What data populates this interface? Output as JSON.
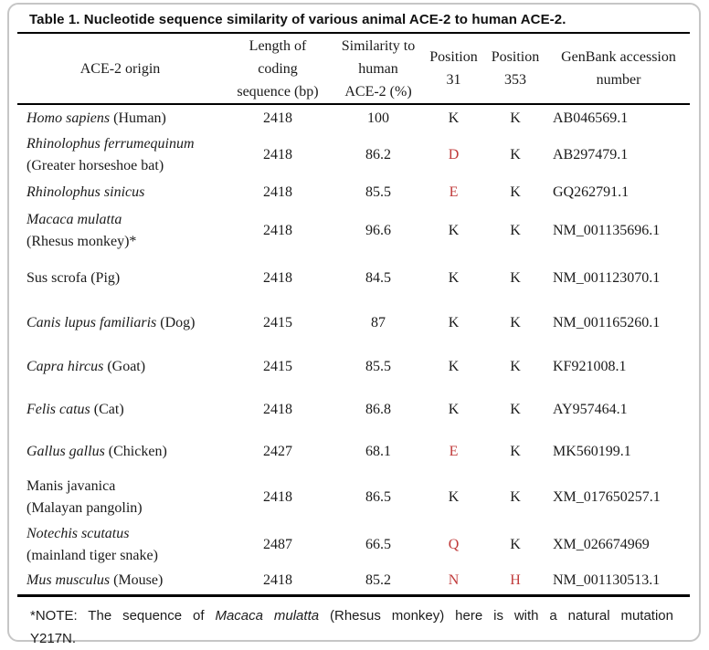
{
  "title": "Table 1. Nucleotide sequence similarity of various animal ACE-2 to human ACE-2.",
  "colors": {
    "highlight_red": "#c03a3a",
    "rule_black": "#000000",
    "card_border_gray": "#c6c6c6"
  },
  "table": {
    "columns": [
      {
        "id": "origin",
        "lines": [
          "ACE-2 origin"
        ]
      },
      {
        "id": "length",
        "lines": [
          "Length of",
          "coding",
          "sequence (bp)"
        ]
      },
      {
        "id": "similarity",
        "lines": [
          "Similarity to",
          "human",
          "ACE-2 (%)"
        ]
      },
      {
        "id": "pos31",
        "lines": [
          "Position",
          "31"
        ]
      },
      {
        "id": "pos353",
        "lines": [
          "Position",
          "353"
        ]
      },
      {
        "id": "accession",
        "lines": [
          "GenBank accession",
          "number"
        ]
      }
    ],
    "rows": [
      {
        "origin": [
          [
            {
              "text": "Homo sapiens",
              "italic": true
            },
            {
              "text": " (Human)",
              "italic": false
            }
          ]
        ],
        "length": "2418",
        "similarity": "100",
        "pos31": {
          "text": "K",
          "red": false
        },
        "pos353": {
          "text": "K",
          "red": false
        },
        "accession": "AB046569.1"
      },
      {
        "origin": [
          [
            {
              "text": "Rhinolophus ferrumequinum",
              "italic": true
            }
          ],
          [
            {
              "text": "(Greater horseshoe bat)",
              "italic": false
            }
          ]
        ],
        "length": "2418",
        "similarity": "86.2",
        "pos31": {
          "text": "D",
          "red": true
        },
        "pos353": {
          "text": "K",
          "red": false
        },
        "accession": "AB297479.1"
      },
      {
        "origin": [
          [
            {
              "text": "Rhinolophus sinicus",
              "italic": true
            }
          ]
        ],
        "length": "2418",
        "similarity": "85.5",
        "pos31": {
          "text": "E",
          "red": true
        },
        "pos353": {
          "text": "K",
          "red": false
        },
        "accession": "GQ262791.1"
      },
      {
        "origin": [
          [
            {
              "text": "Macaca mulatta",
              "italic": true
            }
          ],
          [
            {
              "text": "(Rhesus monkey)*",
              "italic": false
            }
          ]
        ],
        "length": "2418",
        "similarity": "96.6",
        "pos31": {
          "text": "K",
          "red": false
        },
        "pos353": {
          "text": "K",
          "red": false
        },
        "accession": "NM_001135696.1"
      },
      {
        "origin": [
          [
            {
              "text": "Sus scrofa (Pig)",
              "italic": false
            }
          ]
        ],
        "length": "2418",
        "similarity": "84.5",
        "pos31": {
          "text": "K",
          "red": false
        },
        "pos353": {
          "text": "K",
          "red": false
        },
        "accession": "NM_001123070.1"
      },
      {
        "origin": [
          [
            {
              "text": "Canis lupus familiaris",
              "italic": true
            },
            {
              "text": " (Dog)",
              "italic": false
            }
          ]
        ],
        "length": "2415",
        "similarity": "87",
        "pos31": {
          "text": "K",
          "red": false
        },
        "pos353": {
          "text": "K",
          "red": false
        },
        "accession": "NM_001165260.1"
      },
      {
        "origin": [
          [
            {
              "text": "Capra hircus",
              "italic": true
            },
            {
              "text": " (Goat)",
              "italic": false
            }
          ]
        ],
        "length": "2415",
        "similarity": "85.5",
        "pos31": {
          "text": "K",
          "red": false
        },
        "pos353": {
          "text": "K",
          "red": false
        },
        "accession": "KF921008.1"
      },
      {
        "origin": [
          [
            {
              "text": "Felis catus",
              "italic": true
            },
            {
              "text": " (Cat)",
              "italic": false
            }
          ]
        ],
        "length": "2418",
        "similarity": "86.8",
        "pos31": {
          "text": "K",
          "red": false
        },
        "pos353": {
          "text": "K",
          "red": false
        },
        "accession": "AY957464.1"
      },
      {
        "origin": [
          [
            {
              "text": "Gallus gallus",
              "italic": true
            },
            {
              "text": " (Chicken)",
              "italic": false
            }
          ]
        ],
        "length": "2427",
        "similarity": "68.1",
        "pos31": {
          "text": "E",
          "red": true
        },
        "pos353": {
          "text": "K",
          "red": false
        },
        "accession": "MK560199.1"
      },
      {
        "origin": [
          [
            {
              "text": "Manis javanica",
              "italic": false
            }
          ],
          [
            {
              "text": "(Malayan pangolin)",
              "italic": false
            }
          ]
        ],
        "length": "2418",
        "similarity": "86.5",
        "pos31": {
          "text": "K",
          "red": false
        },
        "pos353": {
          "text": "K",
          "red": false
        },
        "accession": "XM_017650257.1"
      },
      {
        "origin": [
          [
            {
              "text": "Notechis scutatus",
              "italic": true
            }
          ],
          [
            {
              "text": "(mainland tiger snake)",
              "italic": false
            }
          ]
        ],
        "length": "2487",
        "similarity": "66.5",
        "pos31": {
          "text": "Q",
          "red": true
        },
        "pos353": {
          "text": "K",
          "red": false
        },
        "accession": "XM_026674969"
      },
      {
        "origin": [
          [
            {
              "text": "Mus musculus",
              "italic": true
            },
            {
              "text": " (Mouse)",
              "italic": false
            }
          ]
        ],
        "length": "2418",
        "similarity": "85.2",
        "pos31": {
          "text": "N",
          "red": true
        },
        "pos353": {
          "text": "H",
          "red": true
        },
        "accession": "NM_001130513.1"
      }
    ]
  },
  "note": {
    "line1": [
      {
        "text": "*NOTE: The sequence of ",
        "italic": false
      },
      {
        "text": "Macaca mulatta",
        "italic": true
      },
      {
        "text": " (Rhesus monkey) here is with a natural mutation",
        "italic": false
      }
    ],
    "line2": "Y217N."
  }
}
